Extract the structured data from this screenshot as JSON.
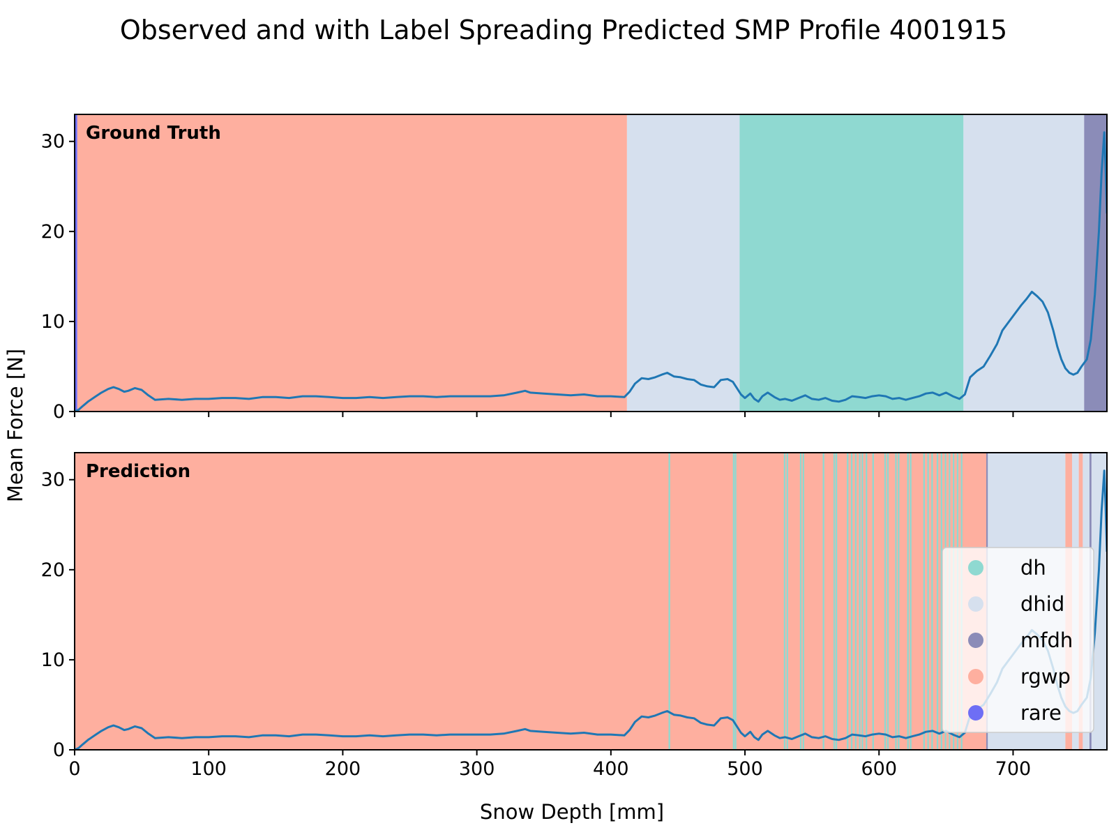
{
  "title": "Observed and with Label Spreading Predicted SMP Profile 4001915",
  "chart_data": {
    "type": "line",
    "title": "Observed and with Label Spreading Predicted SMP Profile 4001915",
    "xlabel": "Snow Depth [mm]",
    "ylabel": "Mean Force [N]",
    "xlim": [
      0,
      770
    ],
    "ylim": [
      0,
      33
    ],
    "xticks": [
      0,
      100,
      200,
      300,
      400,
      500,
      600,
      700
    ],
    "yticks": [
      0,
      10,
      20,
      30
    ],
    "grid": false,
    "legend_location": "lower right of bottom panel",
    "colors": {
      "line": "#1f77b4",
      "dh": "#8fd9d1",
      "dhid": "#d6e0ee",
      "mfdh": "#8b8cb8",
      "rgwp": "#feaf9f",
      "rare": "#6e6ef5"
    },
    "legend": [
      {
        "label": "dh",
        "color": "#8fd9d1"
      },
      {
        "label": "dhid",
        "color": "#d6e0ee"
      },
      {
        "label": "mfdh",
        "color": "#8b8cb8"
      },
      {
        "label": "rgwp",
        "color": "#feaf9f"
      },
      {
        "label": "rare",
        "color": "#6e6ef5"
      }
    ],
    "series": [
      {
        "points": [
          [
            0,
            0
          ],
          [
            3,
            0.2
          ],
          [
            6,
            0.6
          ],
          [
            10,
            1.1
          ],
          [
            15,
            1.6
          ],
          [
            20,
            2.1
          ],
          [
            25,
            2.5
          ],
          [
            29,
            2.7
          ],
          [
            33,
            2.5
          ],
          [
            37,
            2.2
          ],
          [
            40,
            2.3
          ],
          [
            45,
            2.6
          ],
          [
            50,
            2.4
          ],
          [
            55,
            1.8
          ],
          [
            60,
            1.3
          ],
          [
            70,
            1.4
          ],
          [
            80,
            1.3
          ],
          [
            90,
            1.4
          ],
          [
            100,
            1.4
          ],
          [
            110,
            1.5
          ],
          [
            120,
            1.5
          ],
          [
            130,
            1.4
          ],
          [
            140,
            1.6
          ],
          [
            150,
            1.6
          ],
          [
            160,
            1.5
          ],
          [
            170,
            1.7
          ],
          [
            180,
            1.7
          ],
          [
            190,
            1.6
          ],
          [
            200,
            1.5
          ],
          [
            210,
            1.5
          ],
          [
            220,
            1.6
          ],
          [
            230,
            1.5
          ],
          [
            240,
            1.6
          ],
          [
            250,
            1.7
          ],
          [
            260,
            1.7
          ],
          [
            270,
            1.6
          ],
          [
            280,
            1.7
          ],
          [
            290,
            1.7
          ],
          [
            300,
            1.7
          ],
          [
            310,
            1.7
          ],
          [
            320,
            1.8
          ],
          [
            330,
            2.1
          ],
          [
            336,
            2.3
          ],
          [
            340,
            2.1
          ],
          [
            350,
            2.0
          ],
          [
            360,
            1.9
          ],
          [
            370,
            1.8
          ],
          [
            380,
            1.9
          ],
          [
            390,
            1.7
          ],
          [
            400,
            1.7
          ],
          [
            410,
            1.6
          ],
          [
            414,
            2.2
          ],
          [
            418,
            3.1
          ],
          [
            423,
            3.7
          ],
          [
            428,
            3.6
          ],
          [
            433,
            3.8
          ],
          [
            438,
            4.1
          ],
          [
            442,
            4.3
          ],
          [
            447,
            3.9
          ],
          [
            452,
            3.8
          ],
          [
            457,
            3.6
          ],
          [
            462,
            3.5
          ],
          [
            467,
            3.0
          ],
          [
            472,
            2.8
          ],
          [
            477,
            2.7
          ],
          [
            482,
            3.5
          ],
          [
            487,
            3.6
          ],
          [
            491,
            3.3
          ],
          [
            494,
            2.6
          ],
          [
            497,
            1.9
          ],
          [
            500,
            1.5
          ],
          [
            504,
            2.0
          ],
          [
            507,
            1.4
          ],
          [
            510,
            1.1
          ],
          [
            513,
            1.7
          ],
          [
            517,
            2.1
          ],
          [
            522,
            1.6
          ],
          [
            526,
            1.3
          ],
          [
            530,
            1.4
          ],
          [
            535,
            1.2
          ],
          [
            540,
            1.5
          ],
          [
            545,
            1.8
          ],
          [
            550,
            1.4
          ],
          [
            555,
            1.3
          ],
          [
            560,
            1.5
          ],
          [
            565,
            1.2
          ],
          [
            570,
            1.1
          ],
          [
            575,
            1.3
          ],
          [
            580,
            1.7
          ],
          [
            585,
            1.6
          ],
          [
            590,
            1.5
          ],
          [
            595,
            1.7
          ],
          [
            600,
            1.8
          ],
          [
            605,
            1.7
          ],
          [
            610,
            1.4
          ],
          [
            615,
            1.5
          ],
          [
            620,
            1.3
          ],
          [
            625,
            1.5
          ],
          [
            630,
            1.7
          ],
          [
            635,
            2.0
          ],
          [
            640,
            2.1
          ],
          [
            645,
            1.8
          ],
          [
            650,
            2.1
          ],
          [
            655,
            1.7
          ],
          [
            660,
            1.4
          ],
          [
            664,
            1.9
          ],
          [
            668,
            3.8
          ],
          [
            673,
            4.5
          ],
          [
            678,
            5.0
          ],
          [
            683,
            6.2
          ],
          [
            688,
            7.5
          ],
          [
            692,
            9.0
          ],
          [
            697,
            10.0
          ],
          [
            702,
            11.0
          ],
          [
            706,
            11.8
          ],
          [
            710,
            12.5
          ],
          [
            714,
            13.3
          ],
          [
            718,
            12.8
          ],
          [
            722,
            12.2
          ],
          [
            726,
            11.0
          ],
          [
            730,
            9.0
          ],
          [
            733,
            7.2
          ],
          [
            736,
            5.8
          ],
          [
            739,
            4.8
          ],
          [
            742,
            4.3
          ],
          [
            745,
            4.1
          ],
          [
            748,
            4.3
          ],
          [
            751,
            5.0
          ],
          [
            755,
            5.8
          ],
          [
            758,
            8.0
          ],
          [
            761,
            13.0
          ],
          [
            764,
            20.0
          ],
          [
            766,
            26.5
          ],
          [
            768,
            31.0
          ],
          [
            769,
            27.0
          ],
          [
            770,
            22.0
          ]
        ]
      }
    ],
    "panels": [
      {
        "label": "Ground Truth",
        "segments": [
          {
            "from": 0,
            "to": 2,
            "label": "rare"
          },
          {
            "from": 2,
            "to": 412,
            "label": "rgwp"
          },
          {
            "from": 412,
            "to": 496,
            "label": "dhid"
          },
          {
            "from": 496,
            "to": 663,
            "label": "dh"
          },
          {
            "from": 663,
            "to": 753,
            "label": "dhid"
          },
          {
            "from": 753,
            "to": 770,
            "label": "mfdh"
          }
        ]
      },
      {
        "label": "Prediction",
        "segments": [
          {
            "from": 0,
            "to": 680,
            "label": "rgwp"
          },
          {
            "from": 443,
            "to": 444.2,
            "label": "dh"
          },
          {
            "from": 491,
            "to": 492.2,
            "label": "dh"
          },
          {
            "from": 492.4,
            "to": 493.6,
            "label": "dh"
          },
          {
            "from": 529,
            "to": 530.2,
            "label": "dh"
          },
          {
            "from": 531,
            "to": 532.2,
            "label": "dh"
          },
          {
            "from": 541,
            "to": 542.2,
            "label": "dh"
          },
          {
            "from": 543,
            "to": 544.2,
            "label": "dh"
          },
          {
            "from": 558,
            "to": 559.2,
            "label": "dh"
          },
          {
            "from": 566,
            "to": 567.2,
            "label": "dh"
          },
          {
            "from": 567.6,
            "to": 568.8,
            "label": "dh"
          },
          {
            "from": 576,
            "to": 577.2,
            "label": "dh"
          },
          {
            "from": 579,
            "to": 580.2,
            "label": "dh"
          },
          {
            "from": 582,
            "to": 583.2,
            "label": "dh"
          },
          {
            "from": 585,
            "to": 586.2,
            "label": "dh"
          },
          {
            "from": 587,
            "to": 588.2,
            "label": "dh"
          },
          {
            "from": 590,
            "to": 591.2,
            "label": "dh"
          },
          {
            "from": 595,
            "to": 596.2,
            "label": "dh"
          },
          {
            "from": 604,
            "to": 605.2,
            "label": "dh"
          },
          {
            "from": 606,
            "to": 607.2,
            "label": "dh"
          },
          {
            "from": 612,
            "to": 613.2,
            "label": "dh"
          },
          {
            "from": 614,
            "to": 615.2,
            "label": "dh"
          },
          {
            "from": 621,
            "to": 622.2,
            "label": "dh"
          },
          {
            "from": 623,
            "to": 624.2,
            "label": "dh"
          },
          {
            "from": 633,
            "to": 634.2,
            "label": "dh"
          },
          {
            "from": 636,
            "to": 637.2,
            "label": "dh"
          },
          {
            "from": 639,
            "to": 640.2,
            "label": "dh"
          },
          {
            "from": 643,
            "to": 644.2,
            "label": "dh"
          },
          {
            "from": 646,
            "to": 647.2,
            "label": "dh"
          },
          {
            "from": 649,
            "to": 650.2,
            "label": "dh"
          },
          {
            "from": 652,
            "to": 653.2,
            "label": "dh"
          },
          {
            "from": 655,
            "to": 656.2,
            "label": "dh"
          },
          {
            "from": 658,
            "to": 659.2,
            "label": "dh"
          },
          {
            "from": 661,
            "to": 662.2,
            "label": "dh"
          },
          {
            "from": 680,
            "to": 681.2,
            "label": "mfdh"
          },
          {
            "from": 681.2,
            "to": 739,
            "label": "dhid"
          },
          {
            "from": 739,
            "to": 744,
            "label": "rgwp"
          },
          {
            "from": 744,
            "to": 749,
            "label": "dhid"
          },
          {
            "from": 749,
            "to": 752,
            "label": "rgwp"
          },
          {
            "from": 752,
            "to": 757,
            "label": "dhid"
          },
          {
            "from": 757,
            "to": 758.5,
            "label": "mfdh"
          },
          {
            "from": 758.5,
            "to": 770,
            "label": "dhid"
          }
        ]
      }
    ]
  }
}
